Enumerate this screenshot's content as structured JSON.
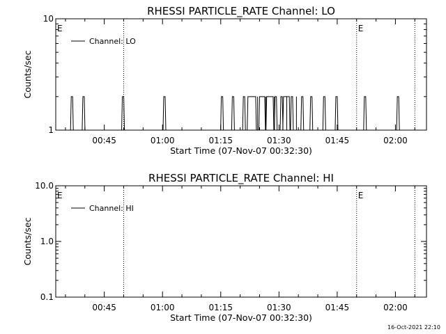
{
  "footer": {
    "timestamp": "16-Oct-2021 22:10"
  },
  "chart_data": [
    {
      "type": "line",
      "title": "RHESSI PARTICLE_RATE Channel: LO",
      "xlabel": "Start Time (07-Nov-07 00:32:30)",
      "ylabel": "Counts/sec",
      "y_scale": "log",
      "ylim": [
        1,
        10
      ],
      "yticks": [
        "1",
        "10"
      ],
      "xlim": [
        "00:32:30",
        "02:08:00"
      ],
      "xticks": [
        "00:45",
        "01:00",
        "01:15",
        "01:30",
        "01:45",
        "02:00"
      ],
      "legend": {
        "position": "top-left",
        "entries": [
          "Channel: LO"
        ]
      },
      "markers": [
        {
          "time": "00:50:00",
          "label": "E"
        },
        {
          "time": "01:50:00",
          "label": ""
        },
        {
          "time": "02:05:00",
          "label": ""
        }
      ],
      "flag_labels": [
        {
          "time": "00:32:30",
          "label": "E"
        },
        {
          "time": "01:50:00",
          "label": "E"
        }
      ],
      "series": [
        {
          "name": "Channel: LO",
          "pulses": [
            [
              "00:36:40",
              2
            ],
            [
              "00:39:40",
              2
            ],
            [
              "00:49:50",
              2
            ],
            [
              "01:00:30",
              2
            ],
            [
              "01:15:20",
              2
            ],
            [
              "01:18:10",
              2
            ],
            [
              "01:21:00",
              2
            ],
            [
              "01:29:10",
              2
            ],
            [
              "01:30:40",
              2
            ],
            [
              "01:33:20",
              2
            ],
            [
              "01:36:00",
              2
            ],
            [
              "01:38:20",
              2
            ],
            [
              "01:41:40",
              2
            ],
            [
              "01:44:50",
              2
            ],
            [
              "01:52:10",
              2
            ],
            [
              "02:00:40",
              2
            ]
          ],
          "plateaus": [
            [
              "01:22:00",
              "01:24:00",
              2
            ],
            [
              "01:25:00",
              "01:26:20",
              2
            ],
            [
              "01:26:50",
              "01:28:30",
              2
            ],
            [
              "01:31:10",
              "01:32:40",
              2
            ]
          ],
          "spikes": [
            [
              "01:24:30",
              2
            ],
            [
              "01:26:35",
              2
            ],
            [
              "01:28:50",
              2
            ],
            [
              "01:32:00",
              2
            ],
            [
              "01:34:30",
              2
            ]
          ]
        }
      ]
    },
    {
      "type": "line",
      "title": "RHESSI PARTICLE_RATE Channel: HI",
      "xlabel": "Start Time (07-Nov-07 00:32:30)",
      "ylabel": "Counts/sec",
      "y_scale": "log",
      "ylim": [
        0.1,
        10
      ],
      "yticks": [
        "0.1",
        "1.0",
        "10.0"
      ],
      "xlim": [
        "00:32:30",
        "02:08:00"
      ],
      "xticks": [
        "00:45",
        "01:00",
        "01:15",
        "01:30",
        "01:45",
        "02:00"
      ],
      "legend": {
        "position": "top-left",
        "entries": [
          "Channel: HI"
        ]
      },
      "markers": [
        {
          "time": "00:50:00",
          "label": ""
        },
        {
          "time": "01:50:00",
          "label": ""
        },
        {
          "time": "02:05:00",
          "label": ""
        }
      ],
      "flag_labels": [
        {
          "time": "00:32:30",
          "label": "E"
        },
        {
          "time": "01:50:00",
          "label": "E"
        }
      ],
      "series": [
        {
          "name": "Channel: HI",
          "pulses": [],
          "plateaus": [],
          "spikes": []
        }
      ]
    }
  ]
}
